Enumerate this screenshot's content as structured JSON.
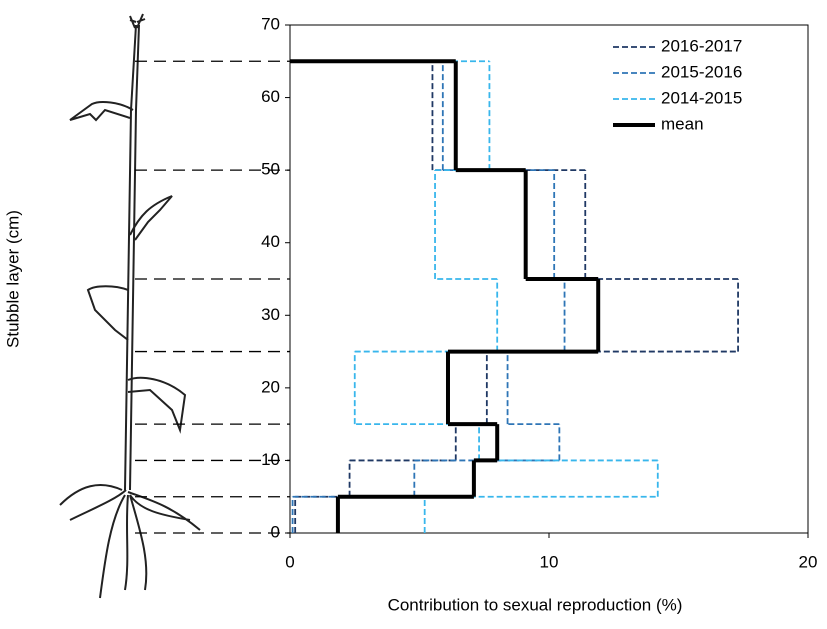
{
  "chart_data": {
    "type": "step",
    "xlabel": "Contribution to sexual reproduction (%)",
    "ylabel": "Stubble layer (cm)",
    "layers": [
      0,
      5,
      10,
      15,
      25,
      35,
      50,
      65
    ],
    "series": [
      {
        "name": "2016-2017",
        "color": "#1f3864",
        "dash": true,
        "values": [
          0.2,
          2.3,
          6.4,
          7.6,
          17.3,
          11.4,
          5.5
        ]
      },
      {
        "name": "2015-2016",
        "color": "#2e75b6",
        "dash": true,
        "values": [
          0.1,
          4.8,
          10.4,
          8.4,
          10.6,
          10.2,
          5.9
        ]
      },
      {
        "name": "2014-2015",
        "color": "#38b6ec",
        "dash": true,
        "values": [
          5.2,
          14.2,
          7.3,
          2.5,
          8.0,
          5.6,
          7.7
        ]
      },
      {
        "name": "mean",
        "color": "#000000",
        "dash": false,
        "values": [
          1.85,
          7.1,
          8.0,
          6.1,
          11.9,
          9.1,
          6.4
        ]
      }
    ],
    "xlim": [
      0,
      20
    ],
    "xticks": [
      0,
      10,
      20
    ],
    "ylim": [
      0,
      70
    ],
    "yticks": [
      0,
      10,
      20,
      30,
      40,
      50,
      60,
      70
    ],
    "legend": "upper right"
  }
}
